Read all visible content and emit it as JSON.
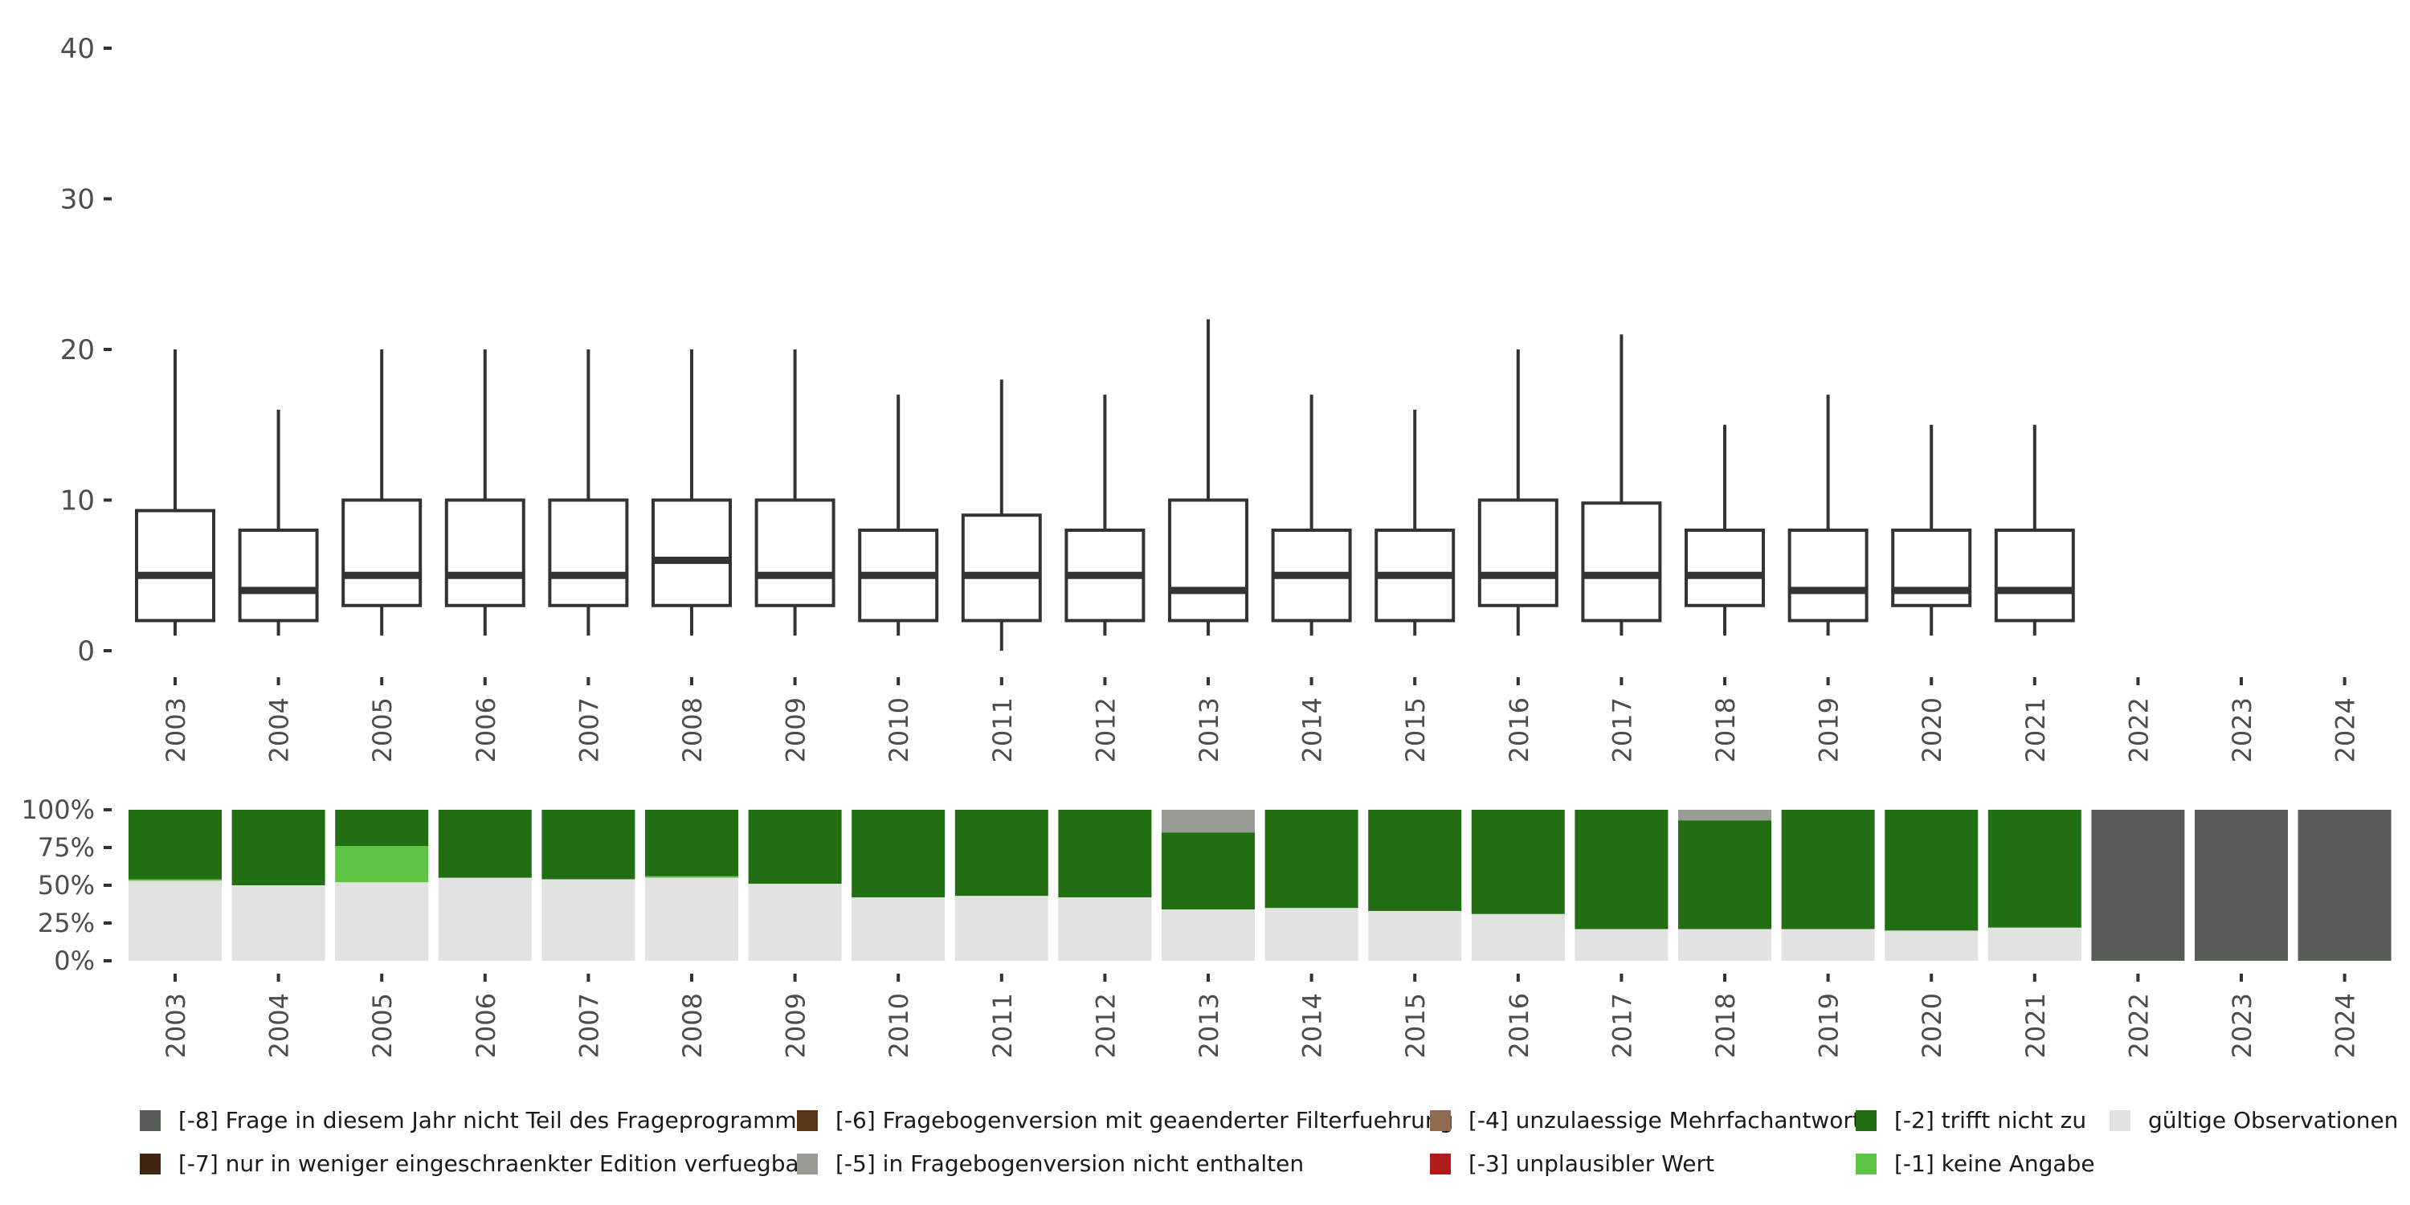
{
  "chart_data": [
    {
      "type": "boxplot",
      "title": "",
      "xlabel": "",
      "ylabel": "",
      "ylim": [
        0,
        40
      ],
      "yticks": [
        "0",
        "10",
        "20",
        "30",
        "40"
      ],
      "categories": [
        "2003",
        "2004",
        "2005",
        "2006",
        "2007",
        "2008",
        "2009",
        "2010",
        "2011",
        "2012",
        "2013",
        "2014",
        "2015",
        "2016",
        "2017",
        "2018",
        "2019",
        "2020",
        "2021",
        "2022",
        "2023",
        "2024"
      ],
      "boxes": [
        {
          "year": "2003",
          "min": 1,
          "q1": 2,
          "median": 5,
          "q3": 9.3,
          "max": 20
        },
        {
          "year": "2004",
          "min": 1,
          "q1": 2,
          "median": 4,
          "q3": 8,
          "max": 16
        },
        {
          "year": "2005",
          "min": 1,
          "q1": 3,
          "median": 5,
          "q3": 10,
          "max": 20
        },
        {
          "year": "2006",
          "min": 1,
          "q1": 3,
          "median": 5,
          "q3": 10,
          "max": 20
        },
        {
          "year": "2007",
          "min": 1,
          "q1": 3,
          "median": 5,
          "q3": 10,
          "max": 20
        },
        {
          "year": "2008",
          "min": 1,
          "q1": 3,
          "median": 6,
          "q3": 10,
          "max": 20
        },
        {
          "year": "2009",
          "min": 1,
          "q1": 3,
          "median": 5,
          "q3": 10,
          "max": 20
        },
        {
          "year": "2010",
          "min": 1,
          "q1": 2,
          "median": 5,
          "q3": 8,
          "max": 17
        },
        {
          "year": "2011",
          "min": 0,
          "q1": 2,
          "median": 5,
          "q3": 9,
          "max": 18
        },
        {
          "year": "2012",
          "min": 1,
          "q1": 2,
          "median": 5,
          "q3": 8,
          "max": 17
        },
        {
          "year": "2013",
          "min": 1,
          "q1": 2,
          "median": 4,
          "q3": 10,
          "max": 22
        },
        {
          "year": "2014",
          "min": 1,
          "q1": 2,
          "median": 5,
          "q3": 8,
          "max": 17
        },
        {
          "year": "2015",
          "min": 1,
          "q1": 2,
          "median": 5,
          "q3": 8,
          "max": 16
        },
        {
          "year": "2016",
          "min": 1,
          "q1": 3,
          "median": 5,
          "q3": 10,
          "max": 20
        },
        {
          "year": "2017",
          "min": 1,
          "q1": 2,
          "median": 5,
          "q3": 9.8,
          "max": 21
        },
        {
          "year": "2018",
          "min": 1,
          "q1": 3,
          "median": 5,
          "q3": 8,
          "max": 15
        },
        {
          "year": "2019",
          "min": 1,
          "q1": 2,
          "median": 4,
          "q3": 8,
          "max": 17
        },
        {
          "year": "2020",
          "min": 1,
          "q1": 3,
          "median": 4,
          "q3": 8,
          "max": 15
        },
        {
          "year": "2021",
          "min": 1,
          "q1": 2,
          "median": 4,
          "q3": 8,
          "max": 15
        },
        null,
        null,
        null
      ]
    },
    {
      "type": "stacked_bar",
      "title": "",
      "xlabel": "",
      "ylabel": "",
      "ylim": [
        0,
        100
      ],
      "yticks": [
        "0%",
        "25%",
        "50%",
        "75%",
        "100%"
      ],
      "categories": [
        "2003",
        "2004",
        "2005",
        "2006",
        "2007",
        "2008",
        "2009",
        "2010",
        "2011",
        "2012",
        "2013",
        "2014",
        "2015",
        "2016",
        "2017",
        "2018",
        "2019",
        "2020",
        "2021",
        "2022",
        "2023",
        "2024"
      ],
      "series": [
        {
          "name": "gültige Observationen",
          "color": "#e0e3df",
          "values": [
            53,
            50,
            52,
            55,
            54,
            55,
            51,
            42,
            43,
            42,
            34,
            35,
            33,
            31,
            21,
            21,
            21,
            20,
            22,
            0,
            0,
            0
          ]
        },
        {
          "name": "[-1] keine Angabe",
          "color": "#5ec445",
          "values": [
            1,
            0,
            24,
            0,
            0,
            1,
            0,
            0,
            0,
            0,
            0,
            0,
            0,
            0,
            0,
            0,
            0,
            0,
            0,
            0,
            0,
            0
          ]
        },
        {
          "name": "[-2] trifft nicht zu",
          "color": "#226e12",
          "values": [
            46,
            50,
            24,
            45,
            46,
            44,
            49,
            58,
            57,
            58,
            51,
            65,
            67,
            69,
            79,
            72,
            79,
            80,
            78,
            0,
            0,
            0
          ]
        },
        {
          "name": "[-3] unplausibler Wert",
          "color": "#b01c1c",
          "values": [
            0,
            0,
            0,
            0,
            0,
            0,
            0,
            0,
            0,
            0,
            0,
            0,
            0,
            0,
            0,
            0,
            0,
            0,
            0,
            0,
            0,
            0
          ]
        },
        {
          "name": "[-4] unzulaessige Mehrfachantwort",
          "color": "#8f6a50",
          "values": [
            0,
            0,
            0,
            0,
            0,
            0,
            0,
            0,
            0,
            0,
            0,
            0,
            0,
            0,
            0,
            0,
            0,
            0,
            0,
            0,
            0,
            0
          ]
        },
        {
          "name": "[-5] in Fragebogenversion nicht enthalten",
          "color": "#999b95",
          "values": [
            0,
            0,
            0,
            0,
            0,
            0,
            0,
            0,
            0,
            0,
            15,
            0,
            0,
            0,
            0,
            7,
            0,
            0,
            0,
            0,
            0,
            0
          ]
        },
        {
          "name": "[-6] Fragebogenversion mit geaenderter Filterfuehrung",
          "color": "#5a3515",
          "values": [
            0,
            0,
            0,
            0,
            0,
            0,
            0,
            0,
            0,
            0,
            0,
            0,
            0,
            0,
            0,
            0,
            0,
            0,
            0,
            0,
            0,
            0
          ]
        },
        {
          "name": "[-7] nur in weniger eingeschraenkter Edition verfuegbar",
          "color": "#3e2610",
          "values": [
            0,
            0,
            0,
            0,
            0,
            0,
            0,
            0,
            0,
            0,
            0,
            0,
            0,
            0,
            0,
            0,
            0,
            0,
            0,
            0,
            0,
            0
          ]
        },
        {
          "name": "[-8] Frage in diesem Jahr nicht Teil des Frageprogramms",
          "color": "#575c56",
          "values": [
            0,
            0,
            0,
            0,
            0,
            0,
            0,
            0,
            0,
            0,
            0,
            0,
            0,
            0,
            0,
            0,
            0,
            0,
            0,
            100,
            100,
            100
          ]
        }
      ]
    }
  ],
  "legend": {
    "items": [
      {
        "label": "[-8] Frage in diesem Jahr nicht Teil des Frageprogramms",
        "color": "#575c56"
      },
      {
        "label": "[-7] nur in weniger eingeschraenkter Edition verfuegbar",
        "color": "#3e2610"
      },
      {
        "label": "[-6] Fragebogenversion mit geaenderter Filterfuehrung",
        "color": "#5a3515"
      },
      {
        "label": "[-5] in Fragebogenversion nicht enthalten",
        "color": "#999b95"
      },
      {
        "label": "[-4] unzulaessige Mehrfachantwort",
        "color": "#8f6a50"
      },
      {
        "label": "[-3] unplausibler Wert",
        "color": "#b01c1c"
      },
      {
        "label": "[-2] trifft nicht zu",
        "color": "#226e12"
      },
      {
        "label": "[-1] keine Angabe",
        "color": "#5ec445"
      },
      {
        "label": "gültige Observationen",
        "color": "#e0e3df"
      }
    ]
  }
}
